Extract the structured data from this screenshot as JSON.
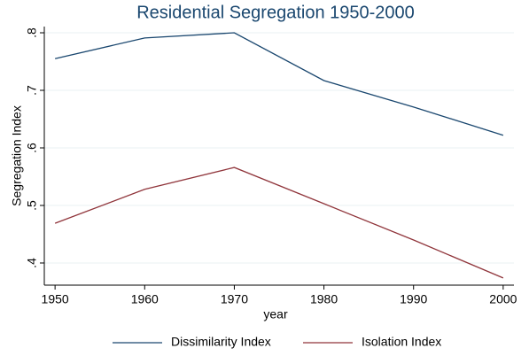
{
  "chart_data": {
    "type": "line",
    "title": "Residential Segregation 1950-2000",
    "x_label": "year",
    "y_label": "Segregation Index",
    "x": [
      1950,
      1960,
      1970,
      1980,
      1990,
      2000
    ],
    "series": [
      {
        "name": "Dissimilarity Index",
        "color": "#1a476f",
        "values": [
          0.755,
          0.791,
          0.8,
          0.717,
          0.671,
          0.622
        ]
      },
      {
        "name": "Isolation Index",
        "color": "#90353b",
        "values": [
          0.469,
          0.528,
          0.566,
          0.503,
          0.44,
          0.374
        ]
      }
    ],
    "xlim": [
      1948.8,
      2001.2
    ],
    "xticks": [
      1950,
      1960,
      1970,
      1980,
      1990,
      2000
    ],
    "ylim": [
      0.3615,
      0.8108
    ],
    "yticks": [
      {
        "value": 0.4,
        "label": ".4"
      },
      {
        "value": 0.5,
        "label": ".5"
      },
      {
        "value": 0.6,
        "label": ".6"
      },
      {
        "value": 0.7,
        "label": ".7"
      },
      {
        "value": 0.8,
        "label": ".8"
      }
    ],
    "grid": true,
    "legend": "bottom"
  }
}
